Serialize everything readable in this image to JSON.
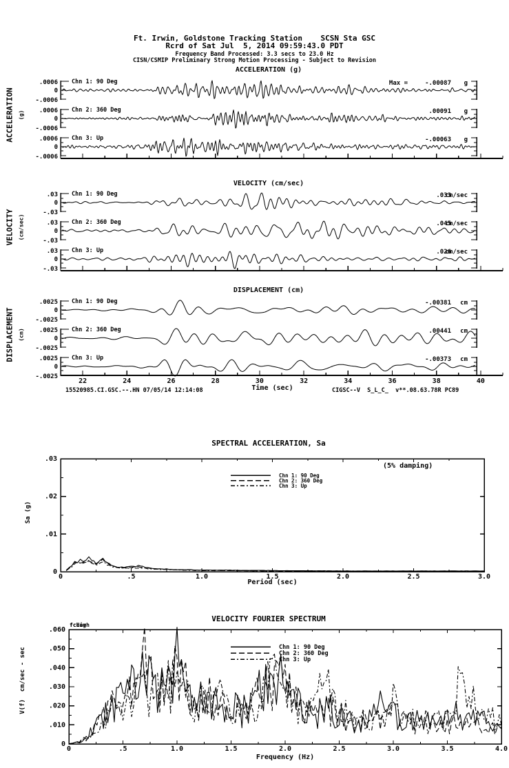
{
  "colors": {
    "ink": "#000000",
    "background": "#ffffff"
  },
  "header": {
    "line1": "Ft. Irwin, Goldstone Tracking Station    SCSN Sta GSC",
    "line2": "Rcrd of Sat Jul  5, 2014 09:59:43.0 PDT",
    "line3": "Frequency Band Processed: 3.3 secs to 23.0 Hz",
    "line4": "CISN/CSMIP Preliminary Strong Motion Processing - Subject to Revision"
  },
  "waveform_sections": [
    {
      "title": "ACCELERATION (g)",
      "side_label": "ACCELERATION",
      "side_sublabel": "(g)",
      "y_tick_labels": [
        ".0006",
        "0",
        "-.0006"
      ],
      "channels": [
        {
          "label": "Chn 1: 90 Deg",
          "max_prefix": "Max = ",
          "max": "-.00087",
          "unit": "g"
        },
        {
          "label": "Chn 2: 360 Deg",
          "max": ".00091",
          "unit": "g"
        },
        {
          "label": "Chn 3: Up",
          "max": "-.00063",
          "unit": "g"
        }
      ]
    },
    {
      "title": "VELOCITY (cm/sec)",
      "side_label": "VELOCITY",
      "side_sublabel": "(cm/sec)",
      "y_tick_labels": [
        ".03",
        "0",
        "-.03"
      ],
      "channels": [
        {
          "label": "Chn 1: 90 Deg",
          "max": ".033",
          "unit": "cm/sec"
        },
        {
          "label": "Chn 2: 360 Deg",
          "max": ".045",
          "unit": "cm/sec"
        },
        {
          "label": "Chn 3: Up",
          "max": ".026",
          "unit": "cm/sec"
        }
      ]
    },
    {
      "title": "DISPLACEMENT (cm)",
      "side_label": "DISPLACEMENT",
      "side_sublabel": "(cm)",
      "y_tick_labels": [
        ".0025",
        "0",
        "-.0025"
      ],
      "channels": [
        {
          "label": "Chn 1: 90 Deg",
          "max": "-.00381",
          "unit": "cm"
        },
        {
          "label": "Chn 2: 360 Deg",
          "max": ".00441",
          "unit": "cm"
        },
        {
          "label": "Chn 3: Up",
          "max": "-.00373",
          "unit": "cm"
        }
      ]
    }
  ],
  "time_axis": {
    "label": "Time (sec)",
    "tick_labels": [
      "22",
      "24",
      "26",
      "28",
      "30",
      "32",
      "34",
      "36",
      "38",
      "40"
    ],
    "t_start": 21,
    "t_end": 41
  },
  "footer": {
    "left": "15520985.CI.GSC.--.HN 07/05/14 12:14:08",
    "right": "CIGSC--V  S_L_C_  v**.08.63.78R PC89"
  },
  "sa_plot": {
    "title": "SPECTRAL ACCELERATION, Sa",
    "damping_note": "(5% damping)",
    "ylabel": "Sa (g)",
    "xlabel": "Period (sec)",
    "y_tick_labels": [
      ".03",
      ".02",
      ".01",
      "0"
    ],
    "y_tick_values": [
      0.03,
      0.02,
      0.01,
      0
    ],
    "x_tick_labels": [
      "0",
      ".5",
      "1.0",
      "1.5",
      "2.0",
      "2.5",
      "3.0"
    ],
    "x_tick_values": [
      0,
      0.5,
      1.0,
      1.5,
      2.0,
      2.5,
      3.0
    ],
    "legend": [
      "Chn 1: 90 Deg",
      "Chn 2: 360 Deg",
      "Chn 3: Up"
    ]
  },
  "fourier_plot": {
    "title": "VELOCITY FOURIER SPECTRUM",
    "ylabel": "V(f)  cm/sec - sec",
    "xlabel": "Frequency (Hz)",
    "fc_labels": [
      "fcLow",
      "fcHigh"
    ],
    "y_tick_labels": [
      ".060",
      ".050",
      ".040",
      ".030",
      ".020",
      ".010",
      "0"
    ],
    "y_tick_values": [
      0.06,
      0.05,
      0.04,
      0.03,
      0.02,
      0.01,
      0
    ],
    "x_tick_labels": [
      "0",
      ".5",
      "1.0",
      "1.5",
      "2.0",
      "2.5",
      "3.0",
      "3.5",
      "4.0"
    ],
    "x_tick_values": [
      0,
      0.5,
      1.0,
      1.5,
      2.0,
      2.5,
      3.0,
      3.5,
      4.0
    ],
    "legend": [
      "Chn 1: 90 Deg",
      "Chn 2: 360 Deg",
      "Chn 3: Up"
    ]
  },
  "chart_data": [
    {
      "type": "line",
      "subtype": "seismic-waveform",
      "title": "ACCELERATION (g)",
      "x_range_sec": [
        21,
        41
      ],
      "y_scale_per_division": 0.0006,
      "channels": [
        {
          "name": "Chn 1: 90 Deg",
          "max_value_g": -0.00087,
          "envelope_per_sec": [
            0.14,
            0.16,
            0.14,
            0.16,
            0.18,
            0.65,
            0.9,
            1.0,
            0.85,
            1.0,
            0.95,
            0.6,
            0.5,
            0.45,
            0.45,
            0.38,
            0.32,
            0.3,
            0.26,
            0.24,
            0.22
          ]
        },
        {
          "name": "Chn 2: 360 Deg",
          "max_value_g": 0.00091,
          "envelope_per_sec": [
            0.13,
            0.14,
            0.15,
            0.14,
            0.17,
            0.6,
            0.85,
            0.75,
            0.95,
            1.0,
            0.9,
            0.65,
            0.55,
            0.6,
            0.5,
            0.4,
            0.35,
            0.3,
            0.26,
            0.24,
            0.22
          ]
        },
        {
          "name": "Chn 3: Up",
          "max_value_g": -0.00063,
          "envelope_per_sec": [
            0.18,
            0.2,
            0.19,
            0.18,
            0.4,
            1.0,
            0.95,
            0.75,
            0.85,
            0.8,
            0.6,
            0.5,
            0.45,
            0.4,
            0.34,
            0.3,
            0.26,
            0.24,
            0.22,
            0.2,
            0.18
          ]
        }
      ]
    },
    {
      "type": "line",
      "subtype": "seismic-waveform",
      "title": "VELOCITY (cm/sec)",
      "x_range_sec": [
        21,
        41
      ],
      "y_scale_per_division": 0.03,
      "channels": [
        {
          "name": "Chn 1: 90 Deg",
          "max_value_cms": 0.033,
          "envelope_per_sec": [
            0.12,
            0.14,
            0.16,
            0.14,
            0.13,
            0.6,
            0.75,
            0.65,
            0.8,
            0.85,
            1.0,
            0.75,
            0.6,
            0.55,
            0.5,
            0.45,
            0.42,
            0.38,
            0.34,
            0.3,
            0.28
          ]
        },
        {
          "name": "Chn 2: 360 Deg",
          "max_value_cms": 0.045,
          "envelope_per_sec": [
            0.1,
            0.1,
            0.12,
            0.11,
            0.12,
            0.5,
            0.65,
            0.6,
            0.75,
            0.7,
            0.65,
            0.6,
            1.0,
            0.65,
            0.5,
            0.45,
            0.4,
            0.35,
            0.3,
            0.28,
            0.25
          ]
        },
        {
          "name": "Chn 3: Up",
          "max_value_cms": 0.026,
          "envelope_per_sec": [
            0.12,
            0.14,
            0.14,
            0.16,
            0.18,
            0.75,
            1.0,
            0.65,
            0.85,
            0.75,
            0.6,
            0.55,
            0.5,
            0.45,
            0.4,
            0.34,
            0.3,
            0.28,
            0.25,
            0.22,
            0.2
          ]
        }
      ]
    },
    {
      "type": "line",
      "subtype": "seismic-waveform",
      "title": "DISPLACEMENT (cm)",
      "x_range_sec": [
        21,
        41
      ],
      "y_scale_per_division": 0.0025,
      "channels": [
        {
          "name": "Chn 1: 90 Deg",
          "max_value_cm": -0.00381,
          "envelope_per_sec": [
            0.12,
            0.14,
            0.14,
            0.18,
            0.3,
            0.9,
            1.0,
            0.5,
            0.6,
            0.75,
            0.85,
            0.5,
            0.45,
            0.5,
            0.6,
            0.65,
            0.5,
            0.45,
            0.5,
            0.45,
            0.4
          ]
        },
        {
          "name": "Chn 2: 360 Deg",
          "max_value_cm": 0.00441,
          "envelope_per_sec": [
            0.1,
            0.1,
            0.12,
            0.15,
            0.25,
            0.6,
            0.95,
            1.0,
            0.75,
            0.55,
            0.65,
            0.6,
            0.55,
            0.65,
            0.5,
            0.45,
            0.5,
            0.45,
            0.4,
            0.4,
            0.35
          ]
        },
        {
          "name": "Chn 3: Up",
          "max_value_cm": -0.00373,
          "envelope_per_sec": [
            0.1,
            0.12,
            0.12,
            0.15,
            0.3,
            0.8,
            1.1,
            0.85,
            0.55,
            0.5,
            0.55,
            0.45,
            0.55,
            0.6,
            0.5,
            0.45,
            0.4,
            0.35,
            0.32,
            0.3,
            0.28
          ]
        }
      ]
    },
    {
      "type": "line",
      "title": "SPECTRAL ACCELERATION, Sa",
      "xlabel": "Period (sec)",
      "ylabel": "Sa (g)",
      "xlim": [
        0,
        3.0
      ],
      "ylim": [
        0,
        0.03
      ],
      "damping": "5%",
      "x": [
        0.04,
        0.06,
        0.08,
        0.1,
        0.12,
        0.14,
        0.16,
        0.18,
        0.2,
        0.22,
        0.25,
        0.28,
        0.3,
        0.33,
        0.36,
        0.4,
        0.45,
        0.5,
        0.55,
        0.6,
        0.65,
        0.7,
        0.8,
        0.9,
        1.0,
        1.2,
        1.5,
        2.0,
        2.5,
        3.0
      ],
      "series": [
        {
          "name": "Chn 1: 90 Deg",
          "values": [
            0.0004,
            0.0011,
            0.0018,
            0.0027,
            0.0022,
            0.0031,
            0.0024,
            0.0029,
            0.0036,
            0.003,
            0.0023,
            0.0031,
            0.0034,
            0.0024,
            0.0017,
            0.0013,
            0.0011,
            0.0014,
            0.0015,
            0.0012,
            0.0009,
            0.0008,
            0.0006,
            0.0005,
            0.0004,
            0.0004,
            0.0003,
            0.0002,
            0.0002,
            0.0002
          ]
        },
        {
          "name": "Chn 2: 360 Deg",
          "values": [
            0.0003,
            0.0009,
            0.0016,
            0.0023,
            0.0027,
            0.0022,
            0.0028,
            0.0025,
            0.0031,
            0.0027,
            0.0021,
            0.0027,
            0.0031,
            0.0022,
            0.0015,
            0.0012,
            0.001,
            0.0012,
            0.0013,
            0.001,
            0.0008,
            0.0007,
            0.0005,
            0.0005,
            0.0004,
            0.0003,
            0.0002,
            0.0002,
            0.0001,
            0.0001
          ]
        },
        {
          "name": "Chn 3: Up",
          "values": [
            0.0003,
            0.0008,
            0.0013,
            0.0019,
            0.0023,
            0.0025,
            0.0021,
            0.0024,
            0.0027,
            0.0023,
            0.0018,
            0.0022,
            0.0025,
            0.0019,
            0.0014,
            0.0011,
            0.0009,
            0.001,
            0.001,
            0.0009,
            0.0007,
            0.0006,
            0.0005,
            0.0004,
            0.0003,
            0.0003,
            0.0002,
            0.0002,
            0.0001,
            0.0001
          ]
        }
      ]
    },
    {
      "type": "line",
      "title": "VELOCITY FOURIER SPECTRUM",
      "xlabel": "Frequency (Hz)",
      "ylabel": "V(f)  cm/sec - sec",
      "xlim": [
        0,
        4.0
      ],
      "ylim": [
        0,
        0.06
      ],
      "x": [
        0,
        0.1,
        0.2,
        0.3,
        0.4,
        0.5,
        0.6,
        0.7,
        0.8,
        0.9,
        1.0,
        1.1,
        1.2,
        1.3,
        1.4,
        1.5,
        1.6,
        1.7,
        1.8,
        1.9,
        2.0,
        2.1,
        2.2,
        2.3,
        2.4,
        2.5,
        2.6,
        2.7,
        2.8,
        2.9,
        3.0,
        3.1,
        3.2,
        3.3,
        3.4,
        3.5,
        3.6,
        3.7,
        3.8,
        3.9,
        4.0
      ],
      "series": [
        {
          "name": "Chn 1: 90 Deg",
          "values": [
            0,
            0.001,
            0.006,
            0.014,
            0.02,
            0.024,
            0.03,
            0.045,
            0.026,
            0.03,
            0.048,
            0.028,
            0.022,
            0.024,
            0.018,
            0.02,
            0.016,
            0.022,
            0.03,
            0.026,
            0.04,
            0.02,
            0.018,
            0.016,
            0.02,
            0.014,
            0.012,
            0.01,
            0.014,
            0.02,
            0.016,
            0.01,
            0.012,
            0.014,
            0.01,
            0.012,
            0.016,
            0.012,
            0.014,
            0.01,
            0.008
          ]
        },
        {
          "name": "Chn 2: 360 Deg",
          "values": [
            0,
            0.001,
            0.005,
            0.012,
            0.022,
            0.026,
            0.024,
            0.05,
            0.03,
            0.026,
            0.04,
            0.03,
            0.024,
            0.028,
            0.02,
            0.016,
            0.018,
            0.02,
            0.034,
            0.03,
            0.034,
            0.022,
            0.016,
            0.014,
            0.018,
            0.016,
            0.01,
            0.012,
            0.012,
            0.016,
            0.02,
            0.012,
            0.01,
            0.012,
            0.008,
            0.01,
            0.012,
            0.01,
            0.01,
            0.008,
            0.006
          ]
        },
        {
          "name": "Chn 3: Up",
          "values": [
            0,
            0.001,
            0.004,
            0.01,
            0.016,
            0.02,
            0.022,
            0.03,
            0.024,
            0.028,
            0.034,
            0.024,
            0.02,
            0.022,
            0.024,
            0.014,
            0.016,
            0.018,
            0.024,
            0.034,
            0.028,
            0.018,
            0.02,
            0.024,
            0.03,
            0.018,
            0.014,
            0.012,
            0.01,
            0.014,
            0.022,
            0.014,
            0.012,
            0.01,
            0.012,
            0.016,
            0.03,
            0.026,
            0.012,
            0.014,
            0.01
          ]
        }
      ]
    }
  ]
}
